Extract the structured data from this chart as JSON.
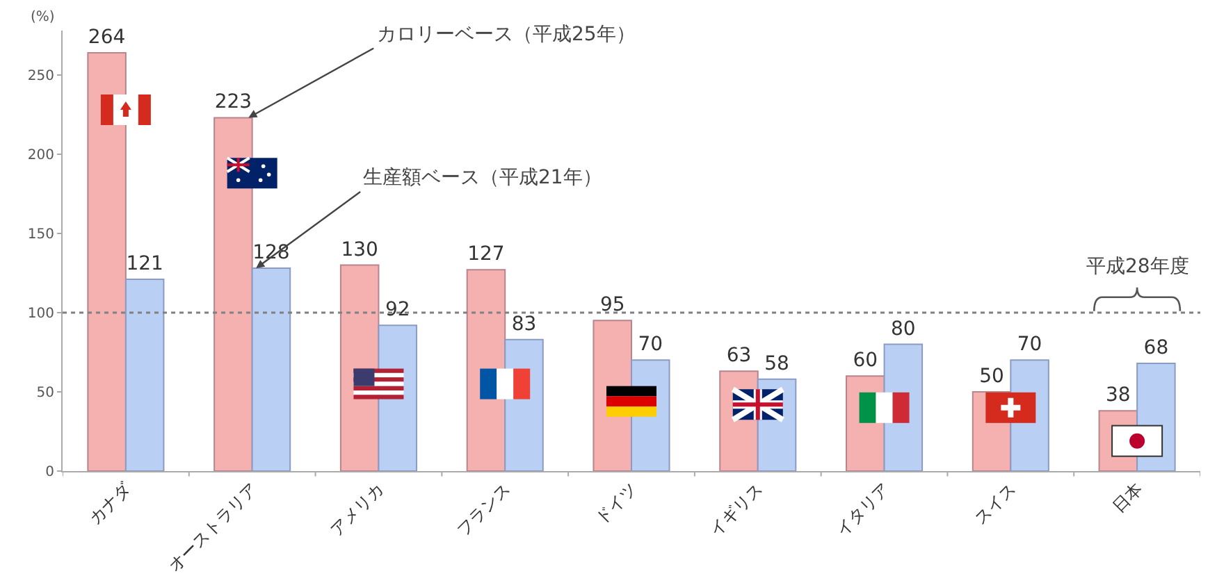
{
  "chart_data": {
    "type": "bar",
    "ylabel": "(%)",
    "categories": [
      "カナダ",
      "オーストラリア",
      "アメリカ",
      "フランス",
      "ドイツ",
      "イギリス",
      "イタリア",
      "スイス",
      "日本"
    ],
    "series": [
      {
        "color": "#f5b0b0",
        "values": [
          264,
          223,
          130,
          127,
          95,
          63,
          60,
          50,
          38
        ]
      },
      {
        "color": "#b9cff4",
        "values": [
          121,
          128,
          92,
          83,
          70,
          58,
          80,
          70,
          68
        ]
      }
    ],
    "data_labels": true,
    "ylim": [
      0,
      278
    ],
    "yticks": [
      0,
      50,
      100,
      150,
      200,
      250
    ],
    "grid": false,
    "ref_lines": [
      {
        "axis": "y",
        "value": 100,
        "color": "#808080",
        "line_style": "dotted"
      }
    ],
    "annotations": [
      {
        "text": "カロリーベース（平成25年）",
        "x": "オーストラリア",
        "y": 223
      },
      {
        "text": "生産額ベース（平成21年）",
        "x": "オーストラリア",
        "y": 128
      },
      "平成28年度"
    ]
  }
}
